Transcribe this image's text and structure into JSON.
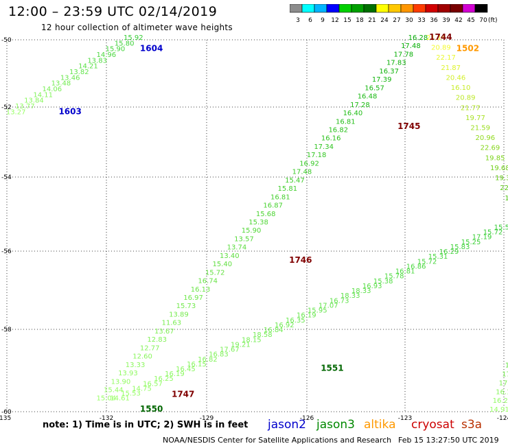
{
  "header": {
    "title": "12:00 – 23:59 UTC 02/14/2019",
    "subtitle": "12 hour collection of altimeter wave heights"
  },
  "colorbar": {
    "labels": [
      "3",
      "6",
      "9",
      "12",
      "15",
      "18",
      "21",
      "24",
      "27",
      "30",
      "33",
      "36",
      "39",
      "42",
      "45",
      "70"
    ],
    "unit": "(ft)",
    "colors": [
      "#8c8c8c",
      "#00ffff",
      "#00b4ff",
      "#0000ff",
      "#00d000",
      "#00a000",
      "#007000",
      "#ffff00",
      "#ffc800",
      "#ff9600",
      "#ff3c00",
      "#d20000",
      "#a00000",
      "#780000",
      "#d200d2",
      "#000000"
    ]
  },
  "note": "note:  1) Time is in UTC;  2) SWH is in feet",
  "satellites": [
    {
      "name": "jason2",
      "color": "#0000cc"
    },
    {
      "name": "jason3",
      "color": "#008800"
    },
    {
      "name": "altika",
      "color": "#ff9900"
    },
    {
      "name": "cryosat",
      "color": "#cc0000"
    },
    {
      "name": "s3a",
      "color": "#b83000"
    }
  ],
  "footer": {
    "credit": "NOAA/NESDIS Center for Satellite Applications and Research",
    "timestamp": "Feb 15 13:27:50 UTC 2019"
  },
  "chart_data": {
    "type": "scatter",
    "xlim": [
      -135,
      -124
    ],
    "ylim": [
      -60,
      -50
    ],
    "x_ticks": [
      "-135",
      "-132",
      "-129",
      "-126",
      "-123",
      "-124"
    ],
    "y_ticks": [
      "-50",
      "-52",
      "-54",
      "-56",
      "-58",
      "-60"
    ],
    "grid": true,
    "passes": [
      {
        "id": "1604",
        "sat": "jason2",
        "color": "#0000cc",
        "start": [
          -134.8,
          -52.0
        ],
        "end": [
          -132.2,
          -50.0
        ],
        "cstart": "#99ff66",
        "cend": "#33cc33",
        "values": [
          "13.27",
          "13.77",
          "13.84",
          "14.11",
          "14.06",
          "13.48",
          "13.46",
          "13.82",
          "14.21",
          "13.83",
          "14.96",
          "15.90",
          "15.80",
          "15.92"
        ]
      },
      {
        "id": "1603",
        "sat": "jason2",
        "color": "#0000cc"
      },
      {
        "id": "1746",
        "sat": "cryosat",
        "color": "#800000",
        "start": [
          -132.8,
          -59.7
        ],
        "end": [
          -125.9,
          -50.0
        ],
        "cstart": "#99ff66",
        "cend": "#00aa00",
        "values": [
          "15.04",
          "15.44",
          "13.90",
          "13.93",
          "13.33",
          "12.60",
          "12.77",
          "12.83",
          "13.67",
          "11.63",
          "13.89",
          "15.73",
          "16.97",
          "16.13",
          "16.74",
          "15.72",
          "15.40",
          "13.40",
          "13.74",
          "13.57",
          "15.90",
          "15.38",
          "15.68",
          "16.87",
          "16.81",
          "15.81",
          "15.47",
          "17.48",
          "16.92",
          "17.18",
          "17.34",
          "16.16",
          "16.82",
          "16.81",
          "16.40",
          "17.28",
          "16.48",
          "16.57",
          "17.39",
          "16.37",
          "17.83",
          "17.78",
          "17.48",
          "16.28"
        ]
      },
      {
        "id": "1745",
        "sat": "cryosat",
        "color": "#800000"
      },
      {
        "id": "1747",
        "sat": "cryosat",
        "color": "#800000"
      },
      {
        "id": "1744",
        "sat": "cryosat",
        "color": "#800000"
      },
      {
        "id": "1502",
        "sat": "altika",
        "color": "#ff9900",
        "start": [
          -125.5,
          -50.0
        ],
        "end": [
          -123.0,
          -56.2
        ],
        "cstart": "#ffff33",
        "cend": "#00aa00",
        "values": [
          "21.14",
          "20.89",
          "22.17",
          "21.87",
          "20.46",
          "16.10",
          "20.89",
          "21.77",
          "19.77",
          "21.59",
          "20.96",
          "22.69",
          "19.85",
          "19.68",
          "19.33",
          "22.34",
          "19.82",
          "18.60",
          "19.26",
          "19.58",
          "17.98",
          "16.82",
          "17.85",
          "18.25"
        ]
      },
      {
        "id": "1501",
        "sat": "altika",
        "color": "#ff9900"
      },
      {
        "id": "1500",
        "sat": "altika",
        "color": "#ff9900",
        "start": [
          -123.0,
          -56.2
        ],
        "end": [
          -124.1,
          -60.0
        ],
        "cstart": "#00aa00",
        "cend": "#99ff66",
        "values": [
          "16.18",
          "16.29",
          "18.26",
          "21.28",
          "18.05",
          "18.53",
          "17.69",
          "16.81",
          "17.04",
          "19.60",
          "19.18",
          "18.26",
          "17.64",
          "17.50",
          "16.13",
          "16.20",
          "14.91"
        ]
      },
      {
        "id": "1552",
        "sat": "jason3",
        "color": "#006600",
        "start": [
          -132.5,
          -59.7
        ],
        "end": [
          -124.0,
          -55.1
        ],
        "cstart": "#99ff66",
        "cend": "#33cc33",
        "values": [
          "14.61",
          "15.53",
          "14.75",
          "16.57",
          "16.25",
          "16.19",
          "16.45",
          "16.15",
          "16.82",
          "16.83",
          "17.67",
          "19.21",
          "18.15",
          "18.58",
          "16.84",
          "16.92",
          "16.35",
          "16.19",
          "15.95",
          "17.07",
          "16.73",
          "18.33",
          "18.33",
          "16.93",
          "15.38",
          "15.78",
          "16.81",
          "16.86",
          "15.72",
          "15.31",
          "16.29",
          "15.83",
          "15.25",
          "17.19",
          "15.72",
          "15.59"
        ]
      },
      {
        "id": "1551",
        "sat": "jason3",
        "color": "#006600"
      },
      {
        "id": "1550",
        "sat": "jason3",
        "color": "#006600"
      }
    ]
  }
}
